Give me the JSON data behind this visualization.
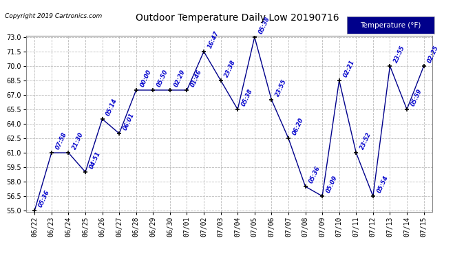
{
  "title": "Outdoor Temperature Daily Low 20190716",
  "copyright": "Copyright 2019 Cartronics.com",
  "legend_label": "Temperature (°F)",
  "dates": [
    "06/22",
    "06/23",
    "06/24",
    "06/25",
    "06/26",
    "06/27",
    "06/28",
    "06/29",
    "06/30",
    "07/01",
    "07/02",
    "07/03",
    "07/04",
    "07/05",
    "07/06",
    "07/07",
    "07/08",
    "07/09",
    "07/10",
    "07/11",
    "07/12",
    "07/13",
    "07/14",
    "07/15"
  ],
  "temperatures": [
    55.0,
    61.0,
    61.0,
    59.0,
    64.5,
    63.0,
    67.5,
    67.5,
    67.5,
    67.5,
    71.5,
    68.5,
    65.5,
    73.0,
    66.5,
    62.5,
    57.5,
    56.5,
    68.5,
    61.0,
    56.5,
    70.0,
    65.5,
    70.0
  ],
  "times": [
    "05:36",
    "07:58",
    "21:30",
    "04:51",
    "05:14",
    "06:01",
    "00:00",
    "05:50",
    "02:29",
    "01:46",
    "16:47",
    "23:38",
    "05:38",
    "05:38",
    "23:55",
    "06:20",
    "05:36",
    "05:09",
    "02:21",
    "23:52",
    "05:54",
    "23:55",
    "05:59",
    "02:25"
  ],
  "ylim": [
    55.0,
    73.0
  ],
  "yticks": [
    55.0,
    56.5,
    58.0,
    59.5,
    61.0,
    62.5,
    64.0,
    65.5,
    67.0,
    68.5,
    70.0,
    71.5,
    73.0
  ],
  "line_color": "#00008B",
  "marker_color": "#000000",
  "bg_color": "#ffffff",
  "grid_color": "#bbbbbb",
  "title_color": "#000000",
  "label_color": "#0000cc",
  "legend_bg": "#00008B",
  "legend_fg": "#ffffff"
}
